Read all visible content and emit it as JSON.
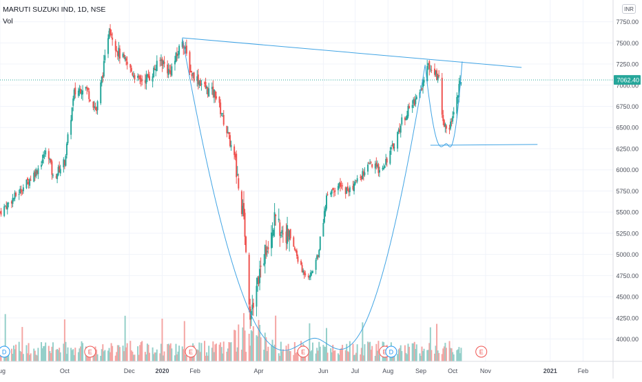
{
  "header": {
    "symbol": "MARUTI SUZUKI IND, 1D, NSE",
    "volume_label": "Vol",
    "currency": "INR",
    "last_price_label": "7062.40"
  },
  "colors": {
    "up": "#26a69a",
    "down": "#ef5350",
    "volume_up": "#94cfc9",
    "volume_down": "#f4a5a3",
    "drawing": "#3fa3e4",
    "last_price_badge": "#26a69a",
    "grid": "#f0f3fa",
    "axis_text": "#4a4e59"
  },
  "chart_data": {
    "type": "candlestick",
    "title": "MARUTI SUZUKI IND, 1D, NSE",
    "price_axis": {
      "ticks": [
        "7750.00",
        "7500.00",
        "7250.00",
        "7000.00",
        "6750.00",
        "6500.00",
        "6250.00",
        "6000.00",
        "5750.00",
        "5500.00",
        "5250.00",
        "5000.00",
        "4750.00",
        "4500.00",
        "4250.00",
        "4000.00"
      ],
      "range": [
        3850,
        7950
      ],
      "last_price": 7062.4
    },
    "time_axis": {
      "labels": [
        "Aug",
        "Oct",
        "Dec",
        "2020",
        "Feb",
        "Apr",
        "Jun",
        "Jul",
        "Aug",
        "Sep",
        "Oct",
        "Nov",
        "2021",
        "Feb"
      ],
      "start_date": "2019-08-01",
      "end_date": "2021-02-28"
    },
    "price_path": [
      [
        "2019-08-01",
        5500
      ],
      [
        "2019-08-20",
        5750
      ],
      [
        "2019-09-05",
        6000
      ],
      [
        "2019-09-15",
        6250
      ],
      [
        "2019-09-20",
        5900
      ],
      [
        "2019-10-01",
        6100
      ],
      [
        "2019-10-10",
        6900
      ],
      [
        "2019-10-20",
        7000
      ],
      [
        "2019-10-31",
        6700
      ],
      [
        "2019-11-08",
        7300
      ],
      [
        "2019-11-12",
        7700
      ],
      [
        "2019-11-20",
        7400
      ],
      [
        "2019-12-01",
        7200
      ],
      [
        "2019-12-10",
        7050
      ],
      [
        "2019-12-20",
        7100
      ],
      [
        "2019-12-31",
        7300
      ],
      [
        "2020-01-08",
        7150
      ],
      [
        "2020-01-15",
        7350
      ],
      [
        "2020-01-20",
        7550
      ],
      [
        "2020-01-28",
        7150
      ],
      [
        "2020-02-05",
        7050
      ],
      [
        "2020-02-12",
        6950
      ],
      [
        "2020-02-20",
        6900
      ],
      [
        "2020-03-01",
        6500
      ],
      [
        "2020-03-10",
        6100
      ],
      [
        "2020-03-18",
        5400
      ],
      [
        "2020-03-24",
        4300
      ],
      [
        "2020-04-01",
        4750
      ],
      [
        "2020-04-15",
        5400
      ],
      [
        "2020-05-01",
        5200
      ],
      [
        "2020-05-12",
        4800
      ],
      [
        "2020-05-20",
        4750
      ],
      [
        "2020-05-27",
        5000
      ],
      [
        "2020-06-05",
        5750
      ],
      [
        "2020-06-15",
        5800
      ],
      [
        "2020-06-25",
        5750
      ],
      [
        "2020-07-05",
        5900
      ],
      [
        "2020-07-15",
        6050
      ],
      [
        "2020-07-25",
        6000
      ],
      [
        "2020-08-05",
        6250
      ],
      [
        "2020-08-15",
        6600
      ],
      [
        "2020-08-25",
        6800
      ],
      [
        "2020-09-01",
        6950
      ],
      [
        "2020-09-07",
        7200
      ],
      [
        "2020-09-12",
        7250
      ],
      [
        "2020-09-18",
        7050
      ],
      [
        "2020-09-22",
        6600
      ],
      [
        "2020-09-26",
        6400
      ],
      [
        "2020-10-01",
        6650
      ],
      [
        "2020-10-06",
        6900
      ],
      [
        "2020-10-09",
        7062
      ]
    ],
    "events": [
      {
        "label": "D",
        "date": "2019-08-05",
        "type": "dividend"
      },
      {
        "label": "E",
        "date": "2019-10-25",
        "type": "earnings"
      },
      {
        "label": "E",
        "date": "2020-01-28",
        "type": "earnings"
      },
      {
        "label": "E",
        "date": "2020-05-13",
        "type": "earnings"
      },
      {
        "label": "E",
        "date": "2020-07-29",
        "type": "earnings"
      },
      {
        "label": "D",
        "date": "2020-08-04",
        "type": "dividend"
      },
      {
        "label": "E",
        "date": "2020-10-28",
        "type": "earnings"
      }
    ],
    "drawings": [
      {
        "type": "trendline",
        "from": [
          "2020-01-20",
          7560
        ],
        "to": [
          "2020-12-05",
          7210
        ]
      },
      {
        "type": "cup",
        "from": [
          "2020-01-20",
          7560
        ],
        "bottom": [
          "2020-05-24",
          4010
        ],
        "to": [
          "2020-09-05",
          7240
        ]
      },
      {
        "type": "handle",
        "from": [
          "2020-09-05",
          7240
        ],
        "bottom": [
          "2020-09-25",
          6310
        ],
        "to": [
          "2020-10-10",
          7280
        ]
      },
      {
        "type": "support",
        "from": [
          "2020-09-10",
          6290
        ],
        "to": [
          "2020-12-20",
          6300
        ]
      }
    ]
  }
}
